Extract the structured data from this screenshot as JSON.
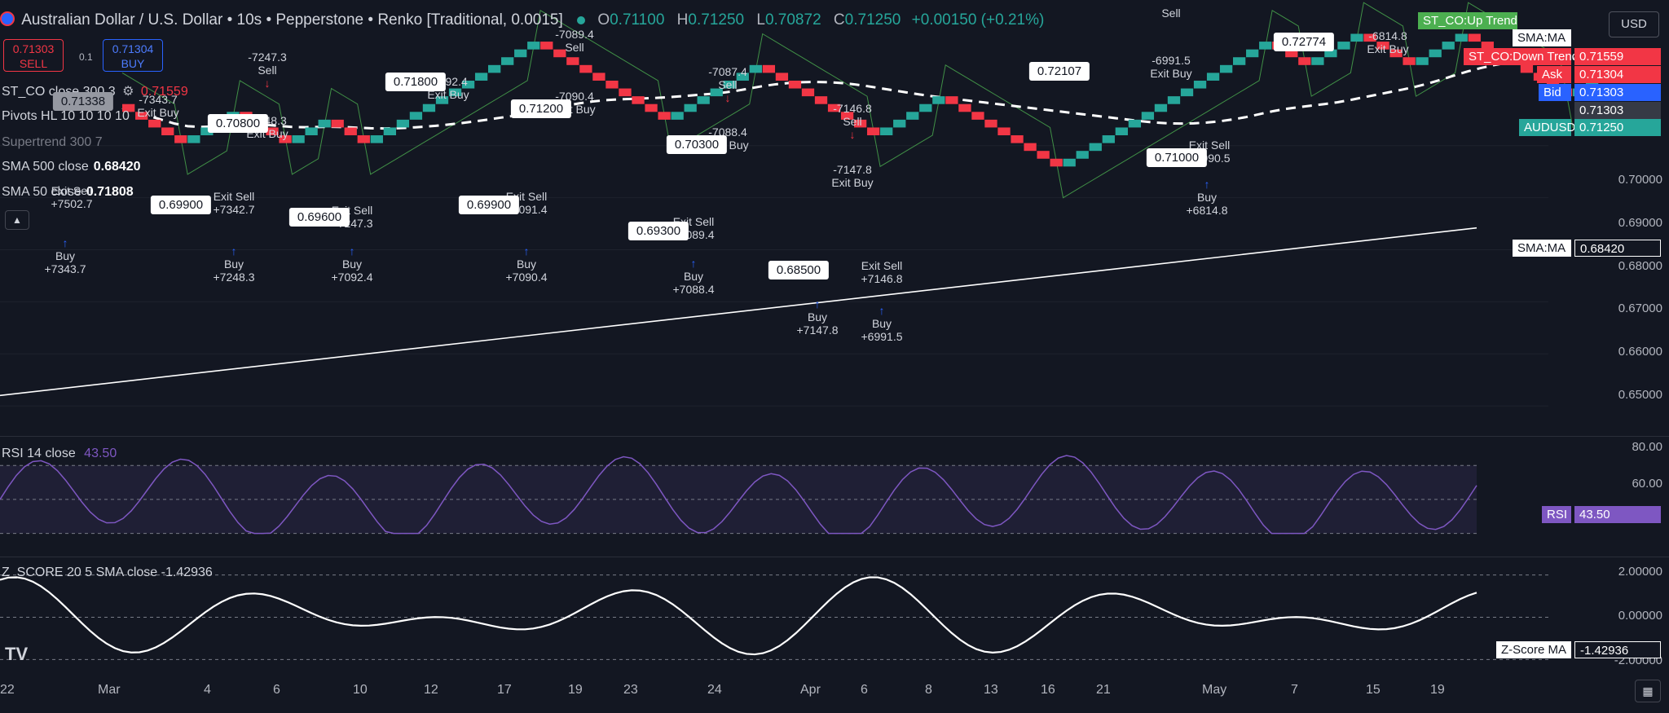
{
  "header": {
    "title": "Australian Dollar / U.S. Dollar • 10s • Pepperstone • Renko [Traditional, 0.0015]",
    "o_label": "O",
    "o": "0.71100",
    "h_label": "H",
    "h": "0.71250",
    "l_label": "L",
    "l": "0.70872",
    "c_label": "C",
    "c": "0.71250",
    "change": "+0.00150 (+0.21%)"
  },
  "trade": {
    "sell_price": "0.71303",
    "sell_label": "SELL",
    "buy_price": "0.71304",
    "buy_label": "BUY",
    "spread": "0.1"
  },
  "currency": "USD",
  "legends": {
    "stco": "ST_CO close 300 3",
    "stco_val": "0.71559",
    "pivots": "Pivots HL 10 10 10 10",
    "supertrend": "Supertrend 300 7",
    "sma500": "SMA 500 close",
    "sma500_val": "0.68420",
    "sma50": "SMA 50 close",
    "sma50_val": "0.71808",
    "rsi": "RSI 14 close",
    "rsi_val": "43.50",
    "zscore": "Z_SCORE 20 5 SMA close",
    "zscore_val": "-1.42936"
  },
  "price_tags": [
    {
      "label": "ST_CO:Up Trend",
      "value": "",
      "color": "#4caf50"
    },
    {
      "label": "SMA:MA",
      "value": "",
      "color": "#ffffff"
    },
    {
      "label": "ST_CO:Down Trend",
      "value": "0.71559",
      "color": "#f23645"
    },
    {
      "label": "Ask",
      "value": "0.71304",
      "color": "#f23645"
    },
    {
      "label": "Bid",
      "value": "0.71303",
      "color": "#2962ff"
    },
    {
      "label": "",
      "value": "0.71303",
      "color": "#363a45"
    },
    {
      "label": "AUDUSD",
      "value": "0.71250",
      "color": "#26a69a"
    },
    {
      "label": "SMA:MA",
      "value": "0.68420",
      "color": "#ffffff"
    },
    {
      "label": "RSI",
      "value": "43.50",
      "color": "#7e57c2"
    },
    {
      "label": "Z-Score MA",
      "value": "-1.42936",
      "color": "#ffffff"
    }
  ],
  "price_axis": [
    "0.70000",
    "0.69000",
    "0.68000",
    "0.67000",
    "0.66000",
    "0.65000"
  ],
  "rsi_axis": [
    "80.00",
    "60.00"
  ],
  "z_axis": [
    "2.00000",
    "0.00000",
    "-2.00000"
  ],
  "dates": [
    "22",
    "Mar",
    "4",
    "6",
    "10",
    "12",
    "17",
    "19",
    "23",
    "24",
    "Apr",
    "6",
    "8",
    "13",
    "16",
    "21",
    "May",
    "7",
    "15",
    "19"
  ],
  "annotations": {
    "buys": [
      {
        "l1": "Buy",
        "l2": "+7343.7"
      },
      {
        "l1": "Buy",
        "l2": "+7248.3"
      },
      {
        "l1": "Buy",
        "l2": "+7092.4"
      },
      {
        "l1": "Buy",
        "l2": "+7090.4"
      },
      {
        "l1": "Buy",
        "l2": "+7088.4"
      },
      {
        "l1": "Buy",
        "l2": "+7147.8"
      },
      {
        "l1": "Buy",
        "l2": "+6991.5"
      },
      {
        "l1": "Buy",
        "l2": "+6814.8"
      }
    ],
    "sells": [
      {
        "l1": "-7247.3",
        "l2": "Sell"
      },
      {
        "l1": "-7089.4",
        "l2": "Sell"
      },
      {
        "l1": "-7087.4",
        "l2": "Sell"
      },
      {
        "l1": "-7146.8",
        "l2": "Sell"
      },
      {
        "l1": "-6991.5",
        "l2": "Exit Buy"
      },
      {
        "l1": "-6814.8",
        "l2": "Exit Buy"
      },
      {
        "l1": "Sell",
        "l2": ""
      },
      {
        "l1": "-7090.4",
        "l2": "Exit Buy"
      },
      {
        "l1": "-7088.4",
        "l2": "Exit Buy"
      },
      {
        "l1": "-7147.8",
        "l2": "Exit Buy"
      },
      {
        "l1": "-7343.7",
        "l2": "Exit Buy"
      },
      {
        "l1": "-7248.3",
        "l2": "Exit Buy"
      },
      {
        "l1": "-7092.4",
        "l2": "Exit Buy"
      }
    ],
    "exit_sells": [
      {
        "l1": "Exit Sell",
        "l2": "+7342.7"
      },
      {
        "l1": "Exit Sell",
        "l2": "+7247.3"
      },
      {
        "l1": "Exit Sell",
        "l2": "+7091.4"
      },
      {
        "l1": "Exit Sell",
        "l2": "+7089.4"
      },
      {
        "l1": "Exit Sell",
        "l2": "+7146.8"
      },
      {
        "l1": "Exit Sell",
        "l2": "+6990.5"
      },
      {
        "l1": "Exit Sell",
        "l2": "+7502.7"
      }
    ],
    "pivots": [
      "0.71338",
      "0.70800",
      "0.71800",
      "0.71200",
      "0.70300",
      "0.72107",
      "0.72774",
      "0.69900",
      "0.69600",
      "0.69900",
      "0.69300",
      "0.68500",
      "0.71000"
    ]
  },
  "chart_data": {
    "type": "renko",
    "ylim": [
      0.645,
      0.728
    ],
    "brick_size": 0.0015,
    "bricks": [
      {
        "dir": "down",
        "n": 5
      },
      {
        "dir": "up",
        "n": 4
      },
      {
        "dir": "down",
        "n": 4
      },
      {
        "dir": "up",
        "n": 3
      },
      {
        "dir": "down",
        "n": 3
      },
      {
        "dir": "up",
        "n": 13
      },
      {
        "dir": "down",
        "n": 10
      },
      {
        "dir": "up",
        "n": 7
      },
      {
        "dir": "down",
        "n": 9
      },
      {
        "dir": "up",
        "n": 5
      },
      {
        "dir": "down",
        "n": 9
      },
      {
        "dir": "up",
        "n": 16
      },
      {
        "dir": "down",
        "n": 3
      },
      {
        "dir": "up",
        "n": 4
      },
      {
        "dir": "down",
        "n": 4
      },
      {
        "dir": "up",
        "n": 4
      },
      {
        "dir": "down",
        "n": 8
      },
      {
        "dir": "up",
        "n": 2
      }
    ],
    "sma500": {
      "start": 0.652,
      "end": 0.6842
    },
    "rsi": {
      "ylim": [
        25,
        85
      ],
      "last": 43.5
    },
    "zscore": {
      "ylim": [
        -2.6,
        2.6
      ],
      "last": -1.42936
    }
  }
}
